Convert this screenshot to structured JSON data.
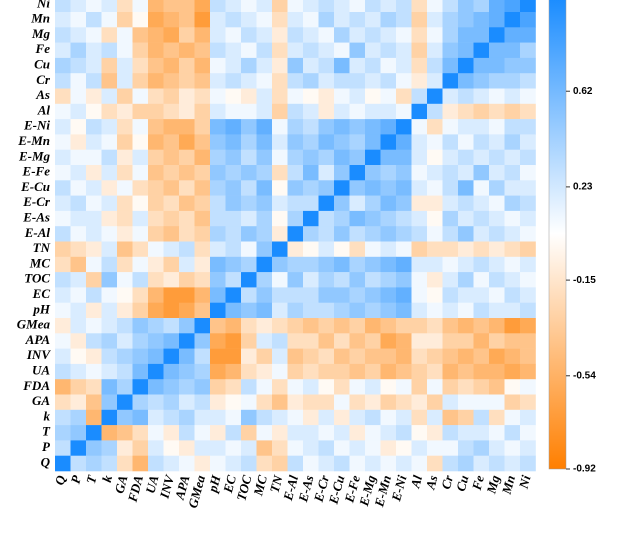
{
  "chart_data": {
    "type": "heatmap",
    "rows": [
      "Ni",
      "Mn",
      "Mg",
      "Fe",
      "Cu",
      "Cr",
      "As",
      "Al",
      "E-Ni",
      "E-Mn",
      "E-Mg",
      "E-Fe",
      "E-Cu",
      "E-Cr",
      "E-As",
      "E-Al",
      "TN",
      "MC",
      "TOC",
      "EC",
      "pH",
      "GMea",
      "APA",
      "INV",
      "UA",
      "FDA",
      "GA",
      "k",
      "T",
      "P",
      "Q"
    ],
    "columns": [
      "Q",
      "P",
      "T",
      "k",
      "GA",
      "FDA",
      "UA",
      "INV",
      "APA",
      "GMea",
      "pH",
      "EC",
      "TOC",
      "MC",
      "TN",
      "E-Al",
      "E-As",
      "E-Cr",
      "E-Cu",
      "E-Fe",
      "E-Mg",
      "E-Mn",
      "E-Ni",
      "Al",
      "As",
      "Cr",
      "Cu",
      "Fe",
      "Mg",
      "Mn",
      "Ni"
    ],
    "values": [
      [
        0.3,
        0.2,
        0.1,
        0.2,
        -0.2,
        0.1,
        -0.5,
        -0.4,
        -0.4,
        -0.6,
        0.3,
        0.2,
        0.1,
        0.2,
        -0.3,
        0.1,
        0.2,
        0.3,
        0.2,
        0.1,
        0.3,
        0.2,
        0.3,
        -0.2,
        0.1,
        0.3,
        0.5,
        0.4,
        0.7,
        0.8,
        1
      ],
      [
        0.2,
        0.1,
        0.3,
        0.1,
        -0.3,
        0,
        -0.6,
        -0.5,
        -0.4,
        -0.7,
        0.2,
        0.3,
        0.2,
        0.1,
        -0.2,
        0.2,
        0.1,
        0.4,
        0.2,
        0.3,
        0.2,
        0.4,
        0.3,
        -0.3,
        0.2,
        0.4,
        0.5,
        0.6,
        0.7,
        1,
        0.8
      ],
      [
        0.3,
        0.2,
        0.1,
        -0.2,
        0.1,
        -0.4,
        -0.5,
        -0.6,
        -0.3,
        -0.5,
        0.2,
        0.1,
        0.3,
        0.2,
        -0.1,
        0.3,
        0.2,
        0.1,
        0.4,
        0.2,
        0.3,
        0.2,
        0.1,
        -0.2,
        0.1,
        0.4,
        0.6,
        0.6,
        1,
        0.7,
        0.7
      ],
      [
        0.2,
        0.4,
        0.2,
        0.3,
        0.1,
        -0.3,
        -0.5,
        -0.4,
        -0.5,
        -0.4,
        0.3,
        0.2,
        0.1,
        0.3,
        -0.2,
        0.2,
        0.3,
        0.2,
        0.1,
        0.5,
        0.2,
        0.3,
        0.2,
        -0.3,
        0.2,
        0.5,
        0.6,
        1,
        0.6,
        0.6,
        0.4
      ],
      [
        0.4,
        0.3,
        0.2,
        -0.3,
        0.2,
        -0.2,
        -0.4,
        -0.5,
        -0.3,
        -0.5,
        0.1,
        0.2,
        0.4,
        0.2,
        -0.1,
        0.5,
        0.2,
        0.3,
        0.6,
        0.2,
        0.3,
        0.1,
        0.2,
        -0.2,
        0.3,
        0.6,
        1,
        0.6,
        0.6,
        0.5,
        0.5
      ],
      [
        0.3,
        0.1,
        0.3,
        -0.4,
        0.2,
        -0.3,
        -0.5,
        -0.4,
        -0.3,
        -0.4,
        0.2,
        0.3,
        0.2,
        0.1,
        -0.2,
        0.3,
        0.4,
        0.2,
        0.3,
        0.3,
        0.2,
        0.3,
        0.1,
        -0.1,
        0.2,
        1,
        0.6,
        0.5,
        0.4,
        0.4,
        0.3
      ],
      [
        -0.2,
        0.1,
        -0.1,
        0.2,
        -0.3,
        0.1,
        -0.2,
        -0.3,
        -0.1,
        -0.2,
        0.1,
        0,
        -0.1,
        0.2,
        -0.2,
        0.1,
        0,
        -0.1,
        0.1,
        0.2,
        0,
        0.1,
        -0.2,
        0.3,
        1,
        0.2,
        0.3,
        0.2,
        0.1,
        0.2,
        0.1
      ],
      [
        0.1,
        0.2,
        0,
        -0.2,
        -0.1,
        -0.3,
        -0.3,
        -0.2,
        -0.1,
        -0.3,
        0.2,
        0.1,
        0.1,
        0.2,
        -0.3,
        0.3,
        0.2,
        -0.1,
        0.2,
        0.1,
        0.2,
        0.2,
        0.1,
        1,
        0.3,
        -0.1,
        -0.2,
        -0.3,
        -0.2,
        -0.3,
        -0.2
      ],
      [
        0.2,
        0,
        0.3,
        0.2,
        -0.2,
        0.1,
        -0.4,
        -0.5,
        -0.5,
        -0.3,
        0.6,
        0.7,
        0.5,
        0.7,
        0.1,
        0.4,
        0.3,
        0.5,
        0.6,
        0.5,
        0.6,
        0.7,
        1,
        0.1,
        -0.2,
        0.1,
        0.2,
        0.2,
        0.1,
        0.3,
        0.3
      ],
      [
        0.1,
        -0.1,
        0.2,
        0.1,
        -0.3,
        0,
        -0.5,
        -0.4,
        -0.6,
        -0.4,
        0.5,
        0.6,
        0.4,
        0.6,
        0.2,
        0.5,
        0.4,
        0.6,
        0.5,
        0.4,
        0.6,
        1,
        0.7,
        0.2,
        0.1,
        0.3,
        0.1,
        0.3,
        0.2,
        0.4,
        0.2
      ],
      [
        0.2,
        0.1,
        0.1,
        0.3,
        -0.1,
        0.2,
        -0.3,
        -0.4,
        -0.3,
        -0.5,
        0.4,
        0.5,
        0.3,
        0.5,
        0.1,
        0.4,
        0.5,
        0.4,
        0.6,
        0.5,
        1,
        0.6,
        0.6,
        0.2,
        0,
        0.2,
        0.3,
        0.2,
        0.3,
        0.2,
        0.3
      ],
      [
        0.1,
        0.2,
        -0.1,
        0.2,
        -0.2,
        0.1,
        -0.4,
        -0.3,
        -0.4,
        -0.3,
        0.5,
        0.4,
        0.5,
        0.4,
        -0.2,
        0.3,
        0.6,
        0.2,
        0.5,
        1,
        0.5,
        0.4,
        0.5,
        0.1,
        0.2,
        0.3,
        0.2,
        0.5,
        0.2,
        0.3,
        0.1
      ],
      [
        0.3,
        0.1,
        0.2,
        -0.1,
        0.1,
        -0.2,
        -0.3,
        -0.4,
        -0.2,
        -0.4,
        0.4,
        0.5,
        0.3,
        0.6,
        0,
        0.5,
        0.4,
        0.5,
        1,
        0.5,
        0.6,
        0.5,
        0.6,
        0.2,
        0.1,
        0.3,
        0.6,
        0.1,
        0.4,
        0.2,
        0.2
      ],
      [
        0.2,
        0.3,
        0.1,
        0.2,
        -0.2,
        0,
        -0.3,
        -0.2,
        -0.4,
        -0.3,
        0.3,
        0.5,
        0.4,
        0.5,
        0.2,
        0.3,
        0.3,
        1,
        0.5,
        0.2,
        0.4,
        0.6,
        0.5,
        -0.1,
        -0.1,
        0.2,
        0.3,
        0.2,
        0.1,
        0.4,
        0.3
      ],
      [
        0.1,
        0.2,
        0.2,
        -0.1,
        -0.2,
        0.2,
        -0.2,
        -0.3,
        -0.2,
        -0.4,
        0.3,
        0.3,
        0.2,
        0.4,
        0,
        0.4,
        1,
        0.3,
        0.4,
        0.6,
        0.5,
        0.4,
        0.3,
        0.2,
        0,
        0.4,
        0.2,
        0.3,
        0.2,
        0.1,
        0.2
      ],
      [
        0.3,
        0.1,
        0.2,
        0.1,
        -0.1,
        0.1,
        -0.3,
        -0.4,
        -0.2,
        -0.3,
        0.4,
        0.3,
        0.5,
        0.4,
        -0.1,
        1,
        0.4,
        0.3,
        0.5,
        0.3,
        0.4,
        0.5,
        0.4,
        0.3,
        0.1,
        0.3,
        0.5,
        0.2,
        0.3,
        0.2,
        0.1
      ],
      [
        -0.3,
        -0.2,
        -0.1,
        0.2,
        -0.4,
        -0.2,
        0.1,
        0.2,
        0.3,
        -0.2,
        0.2,
        0.3,
        0.1,
        0.5,
        1,
        -0.1,
        0,
        0.2,
        0,
        -0.2,
        0.1,
        0.2,
        0.1,
        -0.3,
        -0.2,
        -0.2,
        -0.1,
        -0.2,
        -0.1,
        -0.2,
        -0.3
      ],
      [
        -0.2,
        -0.4,
        0.1,
        0.3,
        -0.2,
        0.1,
        -0.1,
        -0.3,
        0.2,
        -0.1,
        0.6,
        0.5,
        0.4,
        1,
        0.5,
        0.4,
        0.4,
        0.5,
        0.6,
        0.4,
        0.5,
        0.6,
        0.7,
        0.2,
        0.2,
        0.1,
        0.2,
        0.3,
        0.2,
        0.1,
        0.2
      ],
      [
        0.3,
        0.2,
        -0.3,
        0.5,
        0.1,
        0.3,
        -0.2,
        -0.1,
        -0.3,
        -0.2,
        0.5,
        0.3,
        1,
        0.4,
        0.1,
        0.5,
        0.2,
        0.4,
        0.3,
        0.5,
        0.3,
        0.4,
        0.5,
        0.1,
        -0.1,
        0.2,
        0.4,
        0.1,
        0.3,
        0.2,
        0.1
      ],
      [
        0.2,
        0.1,
        0.3,
        0.1,
        0,
        -0.2,
        -0.5,
        -0.7,
        -0.7,
        -0.5,
        0.6,
        1,
        0.3,
        0.5,
        0.3,
        0.3,
        0.3,
        0.5,
        0.5,
        0.4,
        0.5,
        0.6,
        0.7,
        0.1,
        0,
        0.3,
        0.2,
        0.2,
        0.1,
        0.3,
        0.2
      ],
      [
        0.1,
        0.2,
        -0.1,
        0.2,
        -0.1,
        -0.3,
        -0.6,
        -0.7,
        -0.6,
        -0.4,
        1,
        0.6,
        0.5,
        0.6,
        0.2,
        0.4,
        0.3,
        0.3,
        0.4,
        0.5,
        0.4,
        0.5,
        0.6,
        0.2,
        0.1,
        0.2,
        0.1,
        0.3,
        0.2,
        0.2,
        0.3
      ],
      [
        -0.1,
        0.2,
        0.1,
        0.2,
        0.3,
        0.5,
        0.4,
        0.3,
        0.5,
        1,
        -0.4,
        -0.5,
        -0.2,
        -0.1,
        -0.2,
        -0.3,
        -0.4,
        -0.3,
        -0.4,
        -0.3,
        -0.5,
        -0.4,
        -0.3,
        -0.3,
        -0.2,
        -0.4,
        -0.5,
        -0.4,
        -0.5,
        -0.7,
        -0.6
      ],
      [
        0.1,
        -0.1,
        0.3,
        0.4,
        0.2,
        0.4,
        0.5,
        0.6,
        1,
        0.5,
        -0.6,
        -0.7,
        -0.3,
        0.2,
        0.3,
        -0.2,
        -0.2,
        -0.4,
        -0.2,
        -0.4,
        -0.3,
        -0.6,
        -0.5,
        -0.1,
        -0.1,
        -0.3,
        -0.3,
        -0.5,
        -0.3,
        -0.4,
        -0.4
      ],
      [
        0.2,
        0,
        -0.1,
        0.3,
        0.4,
        0.5,
        0.6,
        1,
        0.6,
        0.3,
        -0.7,
        -0.7,
        -0.1,
        -0.3,
        0.2,
        -0.4,
        -0.3,
        -0.2,
        -0.4,
        -0.3,
        -0.4,
        -0.4,
        -0.5,
        -0.2,
        -0.3,
        -0.4,
        -0.5,
        -0.4,
        -0.6,
        -0.5,
        -0.4
      ],
      [
        0.3,
        0.2,
        0.1,
        0.2,
        0.3,
        0.6,
        1,
        0.6,
        0.5,
        0.4,
        -0.6,
        -0.5,
        -0.2,
        -0.1,
        0.1,
        -0.3,
        -0.2,
        -0.3,
        -0.3,
        -0.4,
        -0.3,
        -0.5,
        -0.4,
        -0.3,
        -0.2,
        -0.5,
        -0.4,
        -0.5,
        -0.5,
        -0.6,
        -0.5
      ],
      [
        -0.5,
        -0.3,
        -0.2,
        0.6,
        0.4,
        1,
        0.6,
        0.5,
        0.4,
        0.5,
        -0.3,
        -0.2,
        0.3,
        0.1,
        -0.2,
        0.1,
        0.2,
        0,
        -0.2,
        0.1,
        0.2,
        0,
        0.1,
        -0.3,
        0.1,
        -0.3,
        -0.2,
        -0.3,
        -0.4,
        0,
        0.1
      ],
      [
        -0.2,
        -0.1,
        -0.4,
        0.5,
        1,
        0.4,
        0.3,
        0.4,
        0.2,
        0.3,
        -0.1,
        0,
        0.1,
        -0.2,
        -0.4,
        -0.1,
        -0.2,
        -0.2,
        0.1,
        -0.2,
        -0.1,
        -0.3,
        -0.2,
        -0.1,
        -0.3,
        0.2,
        0.1,
        0.1,
        0.1,
        -0.3,
        -0.2
      ],
      [
        0.3,
        0.4,
        -0.5,
        1,
        0.5,
        0.6,
        0.2,
        0.3,
        0.4,
        0.2,
        0.2,
        0.1,
        0.5,
        0.3,
        0.2,
        0.1,
        -0.1,
        0.2,
        -0.1,
        0.2,
        0.3,
        0.1,
        0.2,
        -0.2,
        0.2,
        -0.4,
        -0.3,
        0.3,
        -0.2,
        0.1,
        0.2
      ],
      [
        0.4,
        0.5,
        1,
        -0.5,
        -0.4,
        -0.2,
        0.1,
        -0.1,
        0.3,
        0.1,
        -0.1,
        0.3,
        -0.3,
        0.1,
        -0.1,
        0.2,
        0.2,
        0.1,
        0.2,
        -0.1,
        0.1,
        0.2,
        0.3,
        0,
        -0.1,
        0.3,
        0.2,
        0.2,
        0.1,
        0.3,
        0.1
      ],
      [
        0.3,
        1,
        0.5,
        0.4,
        -0.1,
        -0.3,
        0.2,
        0,
        -0.1,
        0.2,
        0.2,
        0.1,
        0.2,
        -0.4,
        -0.2,
        0.1,
        0.2,
        0.3,
        0.1,
        0.2,
        0.1,
        -0.1,
        0,
        0.2,
        0.1,
        0.1,
        0.3,
        0.4,
        0.2,
        0.1,
        0.2
      ],
      [
        1,
        0.3,
        0.4,
        0.3,
        -0.2,
        -0.5,
        0.3,
        0.2,
        0.1,
        -0.1,
        0.1,
        0.2,
        0.3,
        -0.2,
        -0.3,
        0.3,
        0.1,
        0.2,
        0.3,
        0.1,
        0.2,
        0.1,
        0.2,
        0.1,
        -0.2,
        0.3,
        0.4,
        0.2,
        0.3,
        0.2,
        0.3
      ]
    ],
    "clim": [
      -0.92,
      1
    ],
    "cticks": [
      0.62,
      0.23,
      -0.15,
      -0.54,
      -0.92
    ],
    "colors": [
      "#ff7f00",
      "#ffffff",
      "#1a8cff"
    ]
  }
}
